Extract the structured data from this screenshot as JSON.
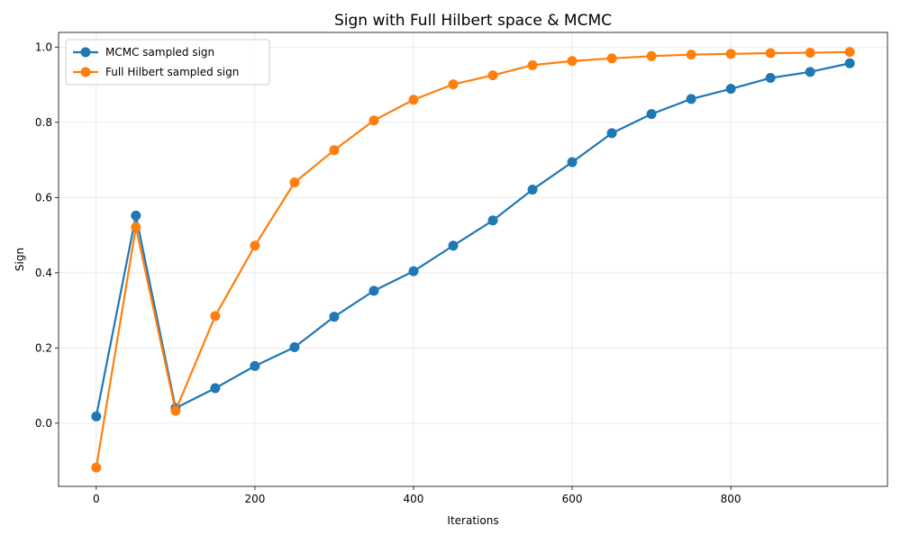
{
  "chart_data": {
    "type": "line",
    "title": "Sign with Full Hilbert space & MCMC",
    "xlabel": "Iterations",
    "ylabel": "Sign",
    "xlim": [
      -47.5,
      997.5
    ],
    "ylim": [
      -0.168,
      1.039
    ],
    "x_ticks": [
      0,
      200,
      400,
      600,
      800
    ],
    "y_ticks": [
      0.0,
      0.2,
      0.4,
      0.6,
      0.8,
      1.0
    ],
    "x_tick_labels": [
      "0",
      "200",
      "400",
      "600",
      "800"
    ],
    "y_tick_labels": [
      "0.0",
      "0.2",
      "0.4",
      "0.6",
      "0.8",
      "1.0"
    ],
    "grid": true,
    "legend_position": "top-left",
    "x": [
      0,
      50,
      100,
      150,
      200,
      250,
      300,
      350,
      400,
      450,
      500,
      550,
      600,
      650,
      700,
      750,
      800,
      850,
      900,
      950
    ],
    "series": [
      {
        "name": "MCMC sampled sign",
        "color": "#1f77b4",
        "values": [
          0.018,
          0.552,
          0.04,
          0.093,
          0.152,
          0.202,
          0.283,
          0.352,
          0.404,
          0.472,
          0.539,
          0.621,
          0.694,
          0.771,
          0.822,
          0.862,
          0.889,
          0.918,
          0.934,
          0.957
        ]
      },
      {
        "name": "Full Hilbert sampled sign",
        "color": "#ff7f0e",
        "values": [
          -0.118,
          0.521,
          0.033,
          0.285,
          0.472,
          0.64,
          0.726,
          0.805,
          0.86,
          0.901,
          0.925,
          0.952,
          0.963,
          0.97,
          0.976,
          0.98,
          0.982,
          0.984,
          0.985,
          0.987
        ]
      }
    ]
  }
}
